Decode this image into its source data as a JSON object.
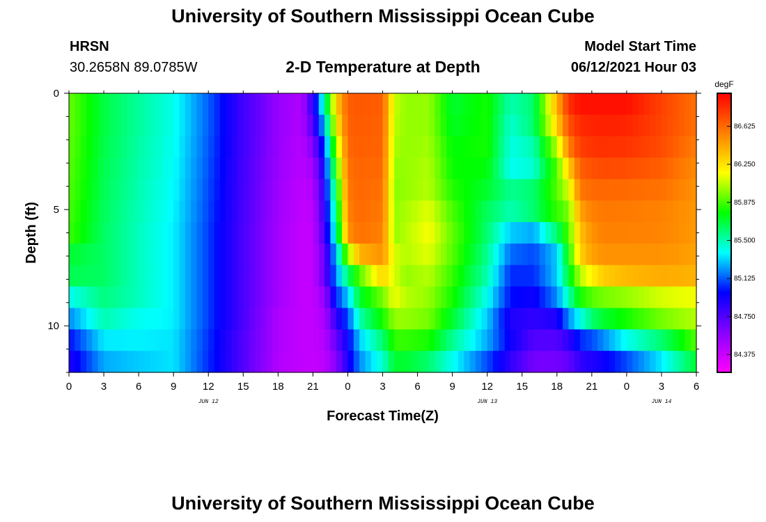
{
  "header": {
    "title": "University of Southern Mississippi Ocean Cube",
    "station": "HRSN",
    "coords": "30.2658N  89.0785W",
    "plot_title": "2-D Temperature at Depth",
    "model_label": "Model Start Time",
    "model_time": "06/12/2021 Hour 03"
  },
  "footer": {
    "title": "University of Southern Mississippi Ocean Cube"
  },
  "chart_data": {
    "type": "heatmap",
    "title": "2-D Temperature at Depth",
    "xlabel": "Forecast Time(Z)",
    "ylabel": "Depth (ft)",
    "x_ticks": [
      "0",
      "3",
      "6",
      "9",
      "12",
      "15",
      "18",
      "21",
      "0",
      "3",
      "6",
      "9",
      "12",
      "15",
      "18",
      "21",
      "0",
      "3",
      "6"
    ],
    "x_range_hours": [
      0,
      54
    ],
    "date_labels": [
      {
        "label": "JUN 12",
        "hour": 12
      },
      {
        "label": "JUN 13",
        "hour": 36
      },
      {
        "label": "JUN 14",
        "hour": 51
      }
    ],
    "y_ticks": [
      "0",
      "5",
      "10"
    ],
    "y_range_ft": [
      0,
      12
    ],
    "colorbar": {
      "unit": "degF",
      "min": 84.2,
      "max": 86.95,
      "labels": [
        "86.625",
        "86.250",
        "85.875",
        "85.500",
        "85.125",
        "84.750",
        "84.375"
      ],
      "colors": [
        "#ff00ff",
        "#8800ff",
        "#0000ff",
        "#00ffff",
        "#00ff00",
        "#ffff00",
        "#ff7f00",
        "#ff0000"
      ]
    },
    "time_hours": [
      0,
      3,
      6,
      9,
      12,
      15,
      18,
      20,
      21,
      22,
      23,
      24,
      25,
      27,
      28,
      29,
      31,
      33,
      36,
      38,
      40,
      42,
      43,
      44,
      45,
      46,
      48,
      51,
      54
    ],
    "depths_ft": [
      0,
      1,
      2,
      3,
      4,
      5,
      6,
      7,
      8,
      9,
      10,
      11,
      12
    ],
    "values_degF": [
      [
        85.93,
        85.67,
        85.53,
        85.41,
        85.13,
        84.8,
        84.55,
        84.45,
        84.85,
        85.5,
        86.3,
        86.66,
        86.68,
        86.66,
        86.08,
        86.0,
        86.0,
        85.7,
        85.8,
        85.5,
        85.6,
        86.4,
        86.8,
        86.9,
        86.9,
        86.9,
        86.9,
        86.75,
        86.6
      ],
      [
        85.93,
        85.67,
        85.53,
        85.41,
        85.13,
        84.8,
        84.55,
        84.45,
        84.75,
        85.3,
        86.2,
        86.65,
        86.67,
        86.65,
        86.06,
        86.0,
        86.0,
        85.72,
        85.8,
        85.45,
        85.6,
        86.3,
        86.7,
        86.82,
        86.84,
        86.85,
        86.84,
        86.74,
        86.6
      ],
      [
        85.92,
        85.66,
        85.52,
        85.4,
        85.12,
        84.8,
        84.54,
        84.44,
        84.6,
        85.1,
        86.0,
        86.63,
        86.66,
        86.64,
        86.03,
        86.0,
        86.02,
        85.76,
        85.8,
        85.42,
        85.5,
        86.05,
        86.55,
        86.76,
        86.79,
        86.8,
        86.79,
        86.72,
        86.56
      ],
      [
        85.91,
        85.65,
        85.51,
        85.39,
        85.11,
        84.79,
        84.53,
        84.43,
        84.5,
        84.98,
        85.85,
        86.6,
        86.64,
        86.62,
        86.0,
        86.0,
        86.04,
        85.78,
        85.76,
        85.4,
        85.45,
        85.9,
        86.3,
        86.66,
        86.7,
        86.72,
        86.71,
        86.66,
        86.52
      ],
      [
        85.9,
        85.64,
        85.5,
        85.38,
        85.1,
        84.79,
        84.52,
        84.42,
        84.45,
        84.9,
        85.7,
        86.58,
        86.63,
        86.6,
        85.98,
        86.0,
        86.05,
        85.82,
        85.7,
        85.55,
        85.6,
        85.9,
        86.1,
        86.58,
        86.62,
        86.63,
        86.62,
        86.6,
        86.5
      ],
      [
        85.88,
        85.63,
        85.49,
        85.37,
        85.09,
        84.78,
        84.51,
        84.41,
        84.42,
        84.85,
        85.6,
        86.55,
        86.62,
        86.58,
        86.0,
        86.03,
        86.12,
        85.88,
        85.63,
        85.5,
        85.6,
        85.85,
        85.95,
        86.45,
        86.55,
        86.58,
        86.57,
        86.55,
        86.48
      ],
      [
        85.86,
        85.62,
        85.48,
        85.36,
        85.08,
        84.77,
        84.5,
        84.4,
        84.4,
        84.8,
        85.5,
        86.5,
        86.6,
        86.55,
        86.0,
        86.05,
        86.16,
        85.92,
        85.6,
        85.3,
        85.25,
        85.6,
        85.9,
        86.35,
        86.5,
        86.55,
        86.55,
        86.54,
        86.48
      ],
      [
        85.7,
        85.62,
        85.48,
        85.36,
        85.08,
        84.77,
        84.5,
        84.4,
        84.4,
        84.7,
        85.3,
        86.0,
        86.4,
        86.5,
        86.1,
        86.05,
        86.12,
        85.9,
        85.55,
        85.15,
        85.1,
        85.3,
        85.8,
        86.3,
        86.45,
        86.5,
        86.5,
        86.5,
        86.45
      ],
      [
        85.65,
        85.62,
        85.48,
        85.36,
        85.08,
        84.77,
        84.5,
        84.4,
        84.4,
        84.7,
        85.2,
        85.6,
        85.9,
        86.3,
        86.1,
        86.0,
        86.05,
        85.85,
        85.5,
        85.05,
        85.05,
        85.3,
        85.7,
        86.05,
        86.2,
        86.32,
        86.38,
        86.42,
        86.4
      ],
      [
        85.4,
        85.58,
        85.48,
        85.36,
        85.08,
        84.77,
        84.5,
        84.4,
        84.4,
        84.55,
        85.05,
        85.3,
        85.7,
        85.95,
        86.15,
        86.05,
        86.0,
        85.8,
        85.4,
        85.0,
        84.95,
        85.2,
        85.5,
        85.8,
        85.9,
        85.95,
        86.0,
        86.1,
        86.15
      ],
      [
        85.2,
        85.5,
        85.4,
        85.36,
        85.08,
        84.77,
        84.47,
        84.4,
        84.4,
        84.48,
        84.85,
        85.1,
        85.5,
        85.8,
        86.0,
        86.0,
        85.95,
        85.7,
        85.3,
        84.9,
        84.85,
        84.9,
        85.2,
        85.4,
        85.6,
        85.7,
        85.8,
        85.95,
        86.05
      ],
      [
        85.0,
        85.35,
        85.36,
        85.34,
        85.06,
        84.75,
        84.47,
        84.4,
        84.4,
        84.45,
        84.7,
        84.95,
        85.3,
        85.6,
        85.85,
        85.85,
        85.8,
        85.55,
        85.25,
        84.95,
        84.75,
        84.75,
        84.85,
        85.05,
        85.1,
        85.2,
        85.4,
        85.6,
        85.9
      ],
      [
        84.9,
        85.25,
        85.3,
        85.34,
        85.05,
        84.75,
        84.46,
        84.4,
        84.4,
        84.42,
        84.6,
        84.9,
        85.2,
        85.45,
        85.7,
        85.7,
        85.6,
        85.4,
        85.1,
        84.85,
        84.65,
        84.65,
        84.7,
        84.85,
        84.9,
        84.95,
        85.1,
        85.35,
        85.7
      ]
    ]
  }
}
